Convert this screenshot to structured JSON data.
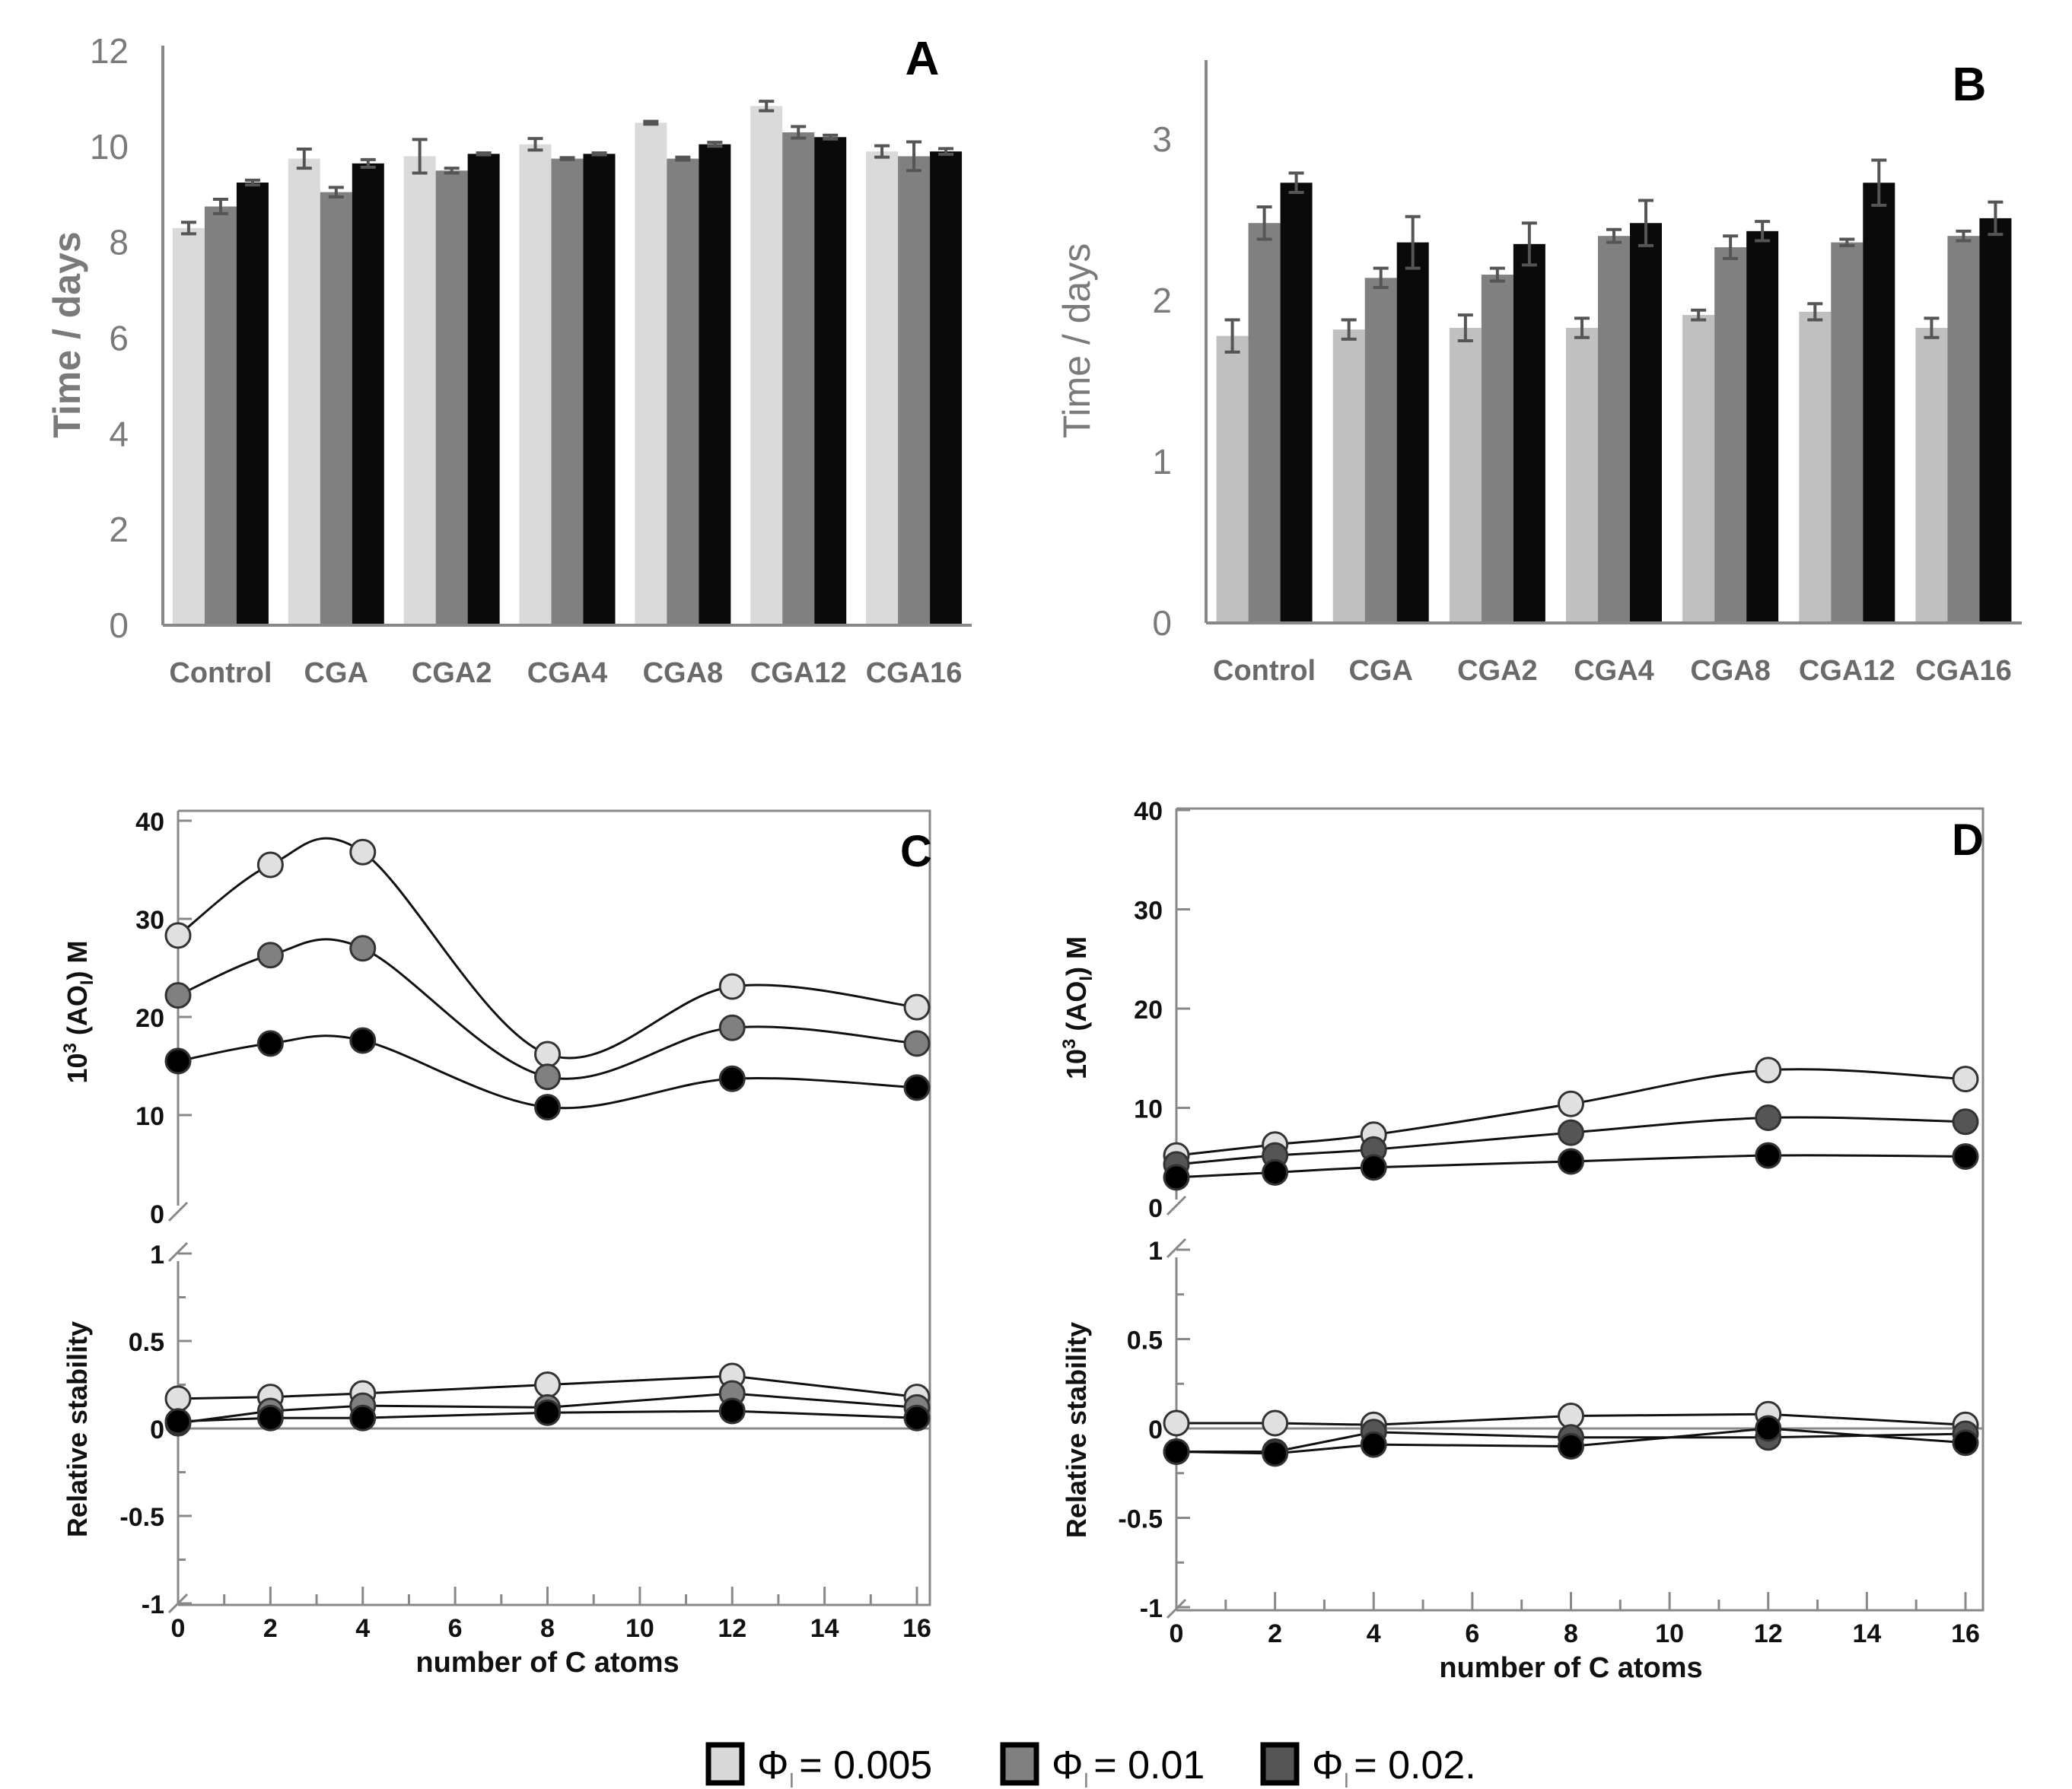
{
  "legend": {
    "items": [
      {
        "label": "Φ",
        "sub": "I",
        "value": "= 0.005",
        "color": "#d9d9d9"
      },
      {
        "label": "Φ",
        "sub": "I",
        "value": "= 0.01",
        "color": "#808080"
      },
      {
        "label": "Φ",
        "sub": "I",
        "value": "= 0.02.",
        "color": "#555555"
      }
    ]
  },
  "chart_data": [
    {
      "panel": "A",
      "type": "bar",
      "ylabel": "Time / days",
      "ylim": [
        0,
        12
      ],
      "yticks": [
        "0",
        "2",
        "4",
        "6",
        "8",
        "10",
        "12"
      ],
      "categories": [
        "Control",
        "CGA",
        "CGA2",
        "CGA4",
        "CGA8",
        "CGA12",
        "CGA16"
      ],
      "series": [
        {
          "name": "ΦI = 0.005",
          "color": "#dadada",
          "values": [
            8.3,
            9.75,
            9.8,
            10.05,
            10.5,
            10.85,
            9.9
          ],
          "errors": [
            0.12,
            0.2,
            0.35,
            0.12,
            0.03,
            0.1,
            0.12
          ]
        },
        {
          "name": "ΦI = 0.01",
          "color": "#808080",
          "values": [
            8.75,
            9.05,
            9.5,
            9.75,
            9.75,
            10.3,
            9.8
          ],
          "errors": [
            0.15,
            0.1,
            0.05,
            0.02,
            0.03,
            0.12,
            0.3
          ]
        },
        {
          "name": "ΦI = 0.02",
          "color": "#0a0a0a",
          "values": [
            9.25,
            9.65,
            9.85,
            9.85,
            10.05,
            10.2,
            9.9
          ],
          "errors": [
            0.05,
            0.08,
            0.02,
            0.02,
            0.04,
            0.04,
            0.06
          ]
        }
      ]
    },
    {
      "panel": "B",
      "type": "bar",
      "ylabel": "Time / days",
      "ylim": [
        0,
        3.5
      ],
      "yticks": [
        "0",
        "1",
        "2",
        "3"
      ],
      "categories": [
        "Control",
        "CGA",
        "CGA2",
        "CGA4",
        "CGA8",
        "CGA12",
        "CGA16"
      ],
      "series": [
        {
          "name": "ΦI = 0.005",
          "color": "#c0c0c0",
          "values": [
            1.78,
            1.82,
            1.83,
            1.83,
            1.91,
            1.93,
            1.83
          ],
          "errors": [
            0.1,
            0.06,
            0.08,
            0.06,
            0.03,
            0.05,
            0.06
          ]
        },
        {
          "name": "ΦI = 0.01",
          "color": "#808080",
          "values": [
            2.48,
            2.14,
            2.16,
            2.4,
            2.33,
            2.36,
            2.4
          ],
          "errors": [
            0.1,
            0.06,
            0.04,
            0.04,
            0.07,
            0.02,
            0.03
          ]
        },
        {
          "name": "ΦI = 0.02",
          "color": "#0a0a0a",
          "values": [
            2.73,
            2.36,
            2.35,
            2.48,
            2.43,
            2.73,
            2.51
          ],
          "errors": [
            0.06,
            0.16,
            0.13,
            0.14,
            0.06,
            0.14,
            0.1
          ]
        }
      ]
    },
    {
      "panel": "C",
      "type": "line",
      "xlabel": "number of C atoms",
      "xlim": [
        0,
        17
      ],
      "xticks": [
        "0",
        "2",
        "4",
        "6",
        "8",
        "10",
        "12",
        "14",
        "16"
      ],
      "x": [
        0,
        2,
        4,
        8,
        12,
        16
      ],
      "upper": {
        "ylabel": "10",
        "ylabel_sup": "3",
        "ylabel_rest": "(AO",
        "ylabel_sub": "I",
        "ylabel_end": ") M",
        "ylim": [
          0,
          40
        ],
        "yticks": [
          "0",
          "10",
          "20",
          "30",
          "40"
        ],
        "series": [
          {
            "name": "ΦI = 0.005",
            "color": "#e0e0e0",
            "values": [
              28.3,
              35.5,
              36.8,
              16.2,
              23.1,
              21.0
            ]
          },
          {
            "name": "ΦI = 0.01",
            "color": "#808080",
            "values": [
              22.2,
              26.3,
              27.0,
              13.9,
              18.9,
              17.3
            ]
          },
          {
            "name": "ΦI = 0.02",
            "color": "#000000",
            "values": [
              15.5,
              17.3,
              17.6,
              10.8,
              13.7,
              12.8
            ]
          }
        ]
      },
      "lower": {
        "ylabel": "Relative stability",
        "ylim": [
          -1,
          1
        ],
        "yticks": [
          "-1",
          "-0.5",
          "0",
          "0.5",
          "1"
        ],
        "series": [
          {
            "name": "ΦI = 0.005",
            "color": "#e0e0e0",
            "values": [
              0.17,
              0.18,
              0.2,
              0.25,
              0.3,
              0.18
            ]
          },
          {
            "name": "ΦI = 0.01",
            "color": "#808080",
            "values": [
              0.03,
              0.1,
              0.13,
              0.12,
              0.2,
              0.12
            ]
          },
          {
            "name": "ΦI = 0.02",
            "color": "#000000",
            "values": [
              0.04,
              0.06,
              0.06,
              0.09,
              0.1,
              0.06
            ]
          }
        ]
      }
    },
    {
      "panel": "D",
      "type": "line",
      "xlabel": "number of C atoms",
      "xlim": [
        0,
        17
      ],
      "xticks": [
        "0",
        "2",
        "4",
        "6",
        "8",
        "10",
        "12",
        "14",
        "16"
      ],
      "x": [
        0,
        2,
        4,
        8,
        12,
        16
      ],
      "upper": {
        "ylabel": "10",
        "ylabel_sup": "3",
        "ylabel_rest": "(AO",
        "ylabel_sub": "I",
        "ylabel_end": ") M",
        "ylim": [
          0,
          40
        ],
        "yticks": [
          "0",
          "10",
          "20",
          "30",
          "40"
        ],
        "series": [
          {
            "name": "ΦI = 0.005",
            "color": "#e0e0e0",
            "values": [
              5.2,
              6.3,
              7.3,
              10.4,
              13.8,
              12.9
            ]
          },
          {
            "name": "ΦI = 0.01",
            "color": "#555555",
            "values": [
              4.3,
              5.2,
              5.8,
              7.5,
              9.0,
              8.6
            ]
          },
          {
            "name": "ΦI = 0.02",
            "color": "#000000",
            "values": [
              3.0,
              3.5,
              4.0,
              4.6,
              5.2,
              5.1
            ]
          }
        ]
      },
      "lower": {
        "ylabel": "Relative stability",
        "ylim": [
          -1,
          1
        ],
        "yticks": [
          "-1",
          "-0.5",
          "0",
          "0.5",
          "1"
        ],
        "series": [
          {
            "name": "ΦI = 0.005",
            "color": "#e0e0e0",
            "values": [
              0.03,
              0.03,
              0.02,
              0.07,
              0.08,
              0.02
            ]
          },
          {
            "name": "ΦI = 0.01",
            "color": "#555555",
            "values": [
              -0.13,
              -0.13,
              -0.02,
              -0.05,
              -0.05,
              -0.03
            ]
          },
          {
            "name": "ΦI = 0.02",
            "color": "#000000",
            "values": [
              -0.13,
              -0.14,
              -0.09,
              -0.1,
              0.0,
              -0.08
            ]
          }
        ]
      }
    }
  ]
}
